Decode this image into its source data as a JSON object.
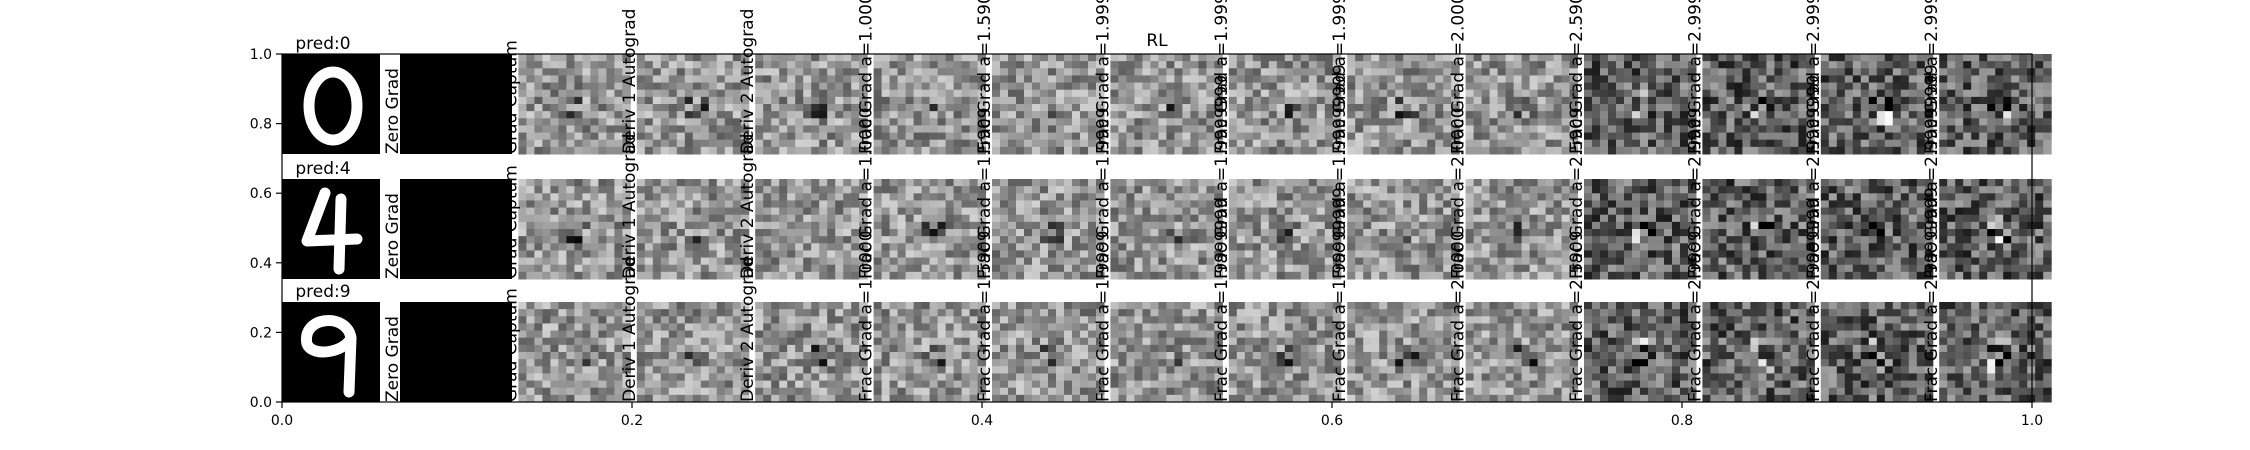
{
  "chart_data": {
    "type": "heatmap",
    "title": "RL",
    "xlabel": "",
    "ylabel": "",
    "xlim": [
      0.0,
      1.0
    ],
    "ylim": [
      0.0,
      1.0
    ],
    "x_ticks": [
      0.0,
      0.2,
      0.4,
      0.6,
      0.8,
      1.0
    ],
    "y_ticks": [
      0.0,
      0.2,
      0.4,
      0.6,
      0.8,
      1.0
    ],
    "x_tick_labels": [
      "0.0",
      "0.2",
      "0.4",
      "0.6",
      "0.8",
      "1.0"
    ],
    "y_tick_labels": [
      "0.0",
      "0.2",
      "0.4",
      "0.6",
      "0.8",
      "1.0"
    ],
    "grid": false,
    "colormap": "gray",
    "rows": [
      {
        "pred_label": "pred:0",
        "digit": "0"
      },
      {
        "pred_label": "pred:4",
        "digit": "4"
      },
      {
        "pred_label": "pred:9",
        "digit": "9"
      }
    ],
    "columns": [
      {
        "label": "Zero Grad",
        "type": "blank"
      },
      {
        "label": "Grad Captum",
        "type": "map"
      },
      {
        "label": "Deriv 1 Autograd",
        "type": "map"
      },
      {
        "label": "Deriv 2 Autograd",
        "type": "map"
      },
      {
        "label": "Frac Grad a=1.0000",
        "type": "map"
      },
      {
        "label": "Frac Grad a=1.5909",
        "type": "map"
      },
      {
        "label": "Frac Grad a=1.9999",
        "type": "map"
      },
      {
        "label": "Frac Grad a=1.9999999",
        "type": "map"
      },
      {
        "label": "Frac Grad a=1.99999999",
        "type": "map"
      },
      {
        "label": "Frac Grad a=2.0000",
        "type": "map"
      },
      {
        "label": "Frac Grad a=2.5909",
        "type": "map"
      },
      {
        "label": "Frac Grad a=2.9999",
        "type": "map"
      },
      {
        "label": "Frac Grad a=2.9999999",
        "type": "map"
      },
      {
        "label": "Frac Grad a=2.99999999",
        "type": "map"
      }
    ]
  }
}
